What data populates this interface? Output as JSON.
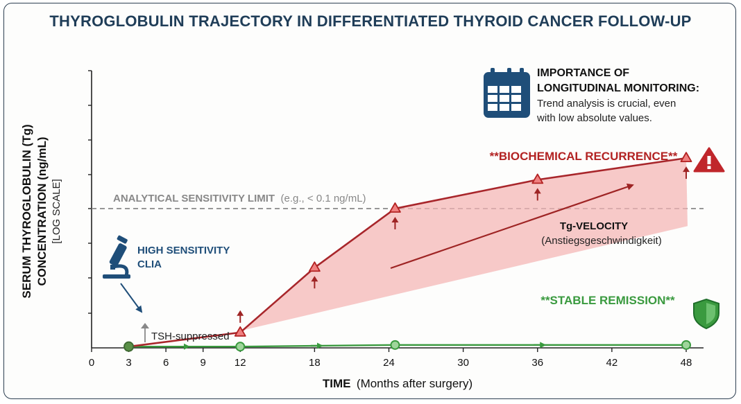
{
  "title": "THYROGLOBULIN TRAJECTORY IN DIFFERENTIATED THYROID CANCER FOLLOW-UP",
  "y_axis": {
    "line1": "SERUM THYROGLOBULIN (Tg)",
    "line2": "CONCENTRATION (ng/mL)",
    "line3": "[LOG SCALE]"
  },
  "x_axis": {
    "label_bold": "TIME",
    "label_rest": "(Months after surgery)"
  },
  "annotations": {
    "sensitivity_bold": "ANALYTICAL SENSITIVITY LIMIT",
    "sensitivity_rest": "(e.g., < 0.1 ng/mL)",
    "assay_line1": "HIGH SENSITIVITY",
    "assay_line2": "CLIA",
    "tsh": "TSH-suppressed",
    "recurrence": "**BIOCHEMICAL RECURRENCE**",
    "remission": "**STABLE REMISSION**",
    "velocity_title": "Tg-VELOCITY",
    "velocity_sub": "(Anstiegsgeschwindigkeit)",
    "importance_title1": "IMPORTANCE OF",
    "importance_title2": "LONGITUDINAL MONITORING:",
    "importance_text1": "Trend analysis is crucial, even",
    "importance_text2": "with low absolute values."
  },
  "icons": {
    "assay": "microscope-icon",
    "calendar": "calendar-icon",
    "warning": "warning-icon",
    "shield": "shield-icon"
  },
  "colors": {
    "title": "#1f3d58",
    "recurrence": "#b22222",
    "recurrence_fill": "#f4b4b4",
    "remission": "#3a9a3f",
    "sensitivity_line": "#888888",
    "assay": "#1f4e79"
  },
  "chart_data": {
    "type": "line",
    "title": "THYROGLOBULIN TRAJECTORY IN DIFFERENTIATED THYROID CANCER FOLLOW-UP",
    "xlabel": "TIME (Months after surgery)",
    "ylabel": "SERUM THYROGLOBULIN (Tg) CONCENTRATION (ng/mL) [LOG SCALE]",
    "log_scale_y": true,
    "xlim": [
      0,
      48
    ],
    "x_ticks": [
      0,
      3,
      6,
      9,
      12,
      18,
      24,
      30,
      36,
      42,
      48
    ],
    "sensitivity_limit": 0.1,
    "series": [
      {
        "name": "**BIOCHEMICAL RECURRENCE**",
        "marker": "triangle",
        "x": [
          3,
          12,
          18,
          24.5,
          36,
          48
        ],
        "y": [
          0.006,
          0.008,
          0.03,
          0.1,
          0.18,
          0.28
        ]
      },
      {
        "name": "**STABLE REMISSION**",
        "marker": "circle",
        "x": [
          3,
          12,
          24.5,
          48
        ],
        "y": [
          0.006,
          0.006,
          0.0062,
          0.0062
        ]
      }
    ]
  }
}
